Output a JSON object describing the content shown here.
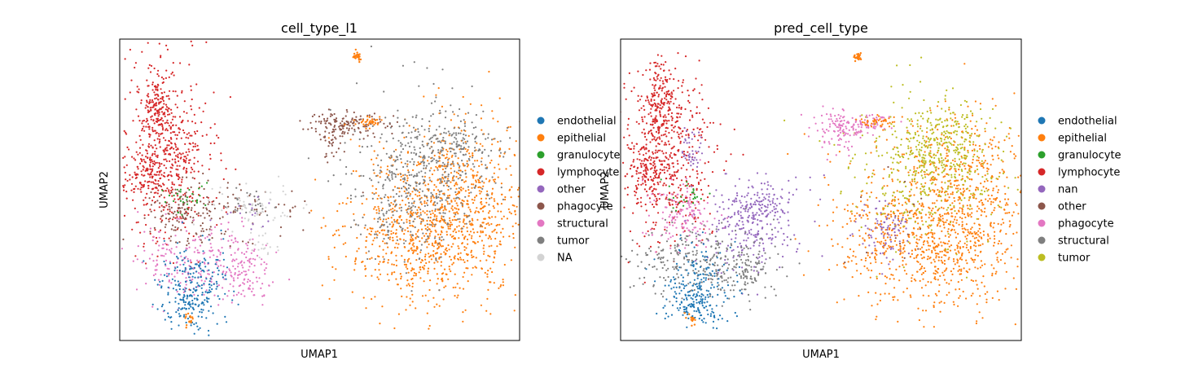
{
  "chart_data": [
    {
      "type": "scatter",
      "title": "cell_type_l1",
      "xlabel": "UMAP1",
      "ylabel": "UMAP2",
      "ticks": false,
      "grid": false,
      "legend_position": "right",
      "series": [
        {
          "name": "endothelial",
          "color": "#1f77b4"
        },
        {
          "name": "epithelial",
          "color": "#ff7f0e"
        },
        {
          "name": "granulocyte",
          "color": "#2ca02c"
        },
        {
          "name": "lymphocyte",
          "color": "#d62728"
        },
        {
          "name": "other",
          "color": "#9467bd"
        },
        {
          "name": "phagocyte",
          "color": "#8c564b"
        },
        {
          "name": "structural",
          "color": "#e377c2"
        },
        {
          "name": "tumor",
          "color": "#7f7f7f"
        },
        {
          "name": "NA",
          "color": "#d3d3d3"
        }
      ]
    },
    {
      "type": "scatter",
      "title": "pred_cell_type",
      "xlabel": "UMAP1",
      "ylabel": "UMAP2",
      "ticks": false,
      "grid": false,
      "legend_position": "right",
      "series": [
        {
          "name": "endothelial",
          "color": "#1f77b4"
        },
        {
          "name": "epithelial",
          "color": "#ff7f0e"
        },
        {
          "name": "granulocyte",
          "color": "#2ca02c"
        },
        {
          "name": "lymphocyte",
          "color": "#d62728"
        },
        {
          "name": "nan",
          "color": "#9467bd"
        },
        {
          "name": "other",
          "color": "#8c564b"
        },
        {
          "name": "phagocyte",
          "color": "#e377c2"
        },
        {
          "name": "structural",
          "color": "#7f7f7f"
        },
        {
          "name": "tumor",
          "color": "#bcbd22"
        }
      ]
    }
  ]
}
